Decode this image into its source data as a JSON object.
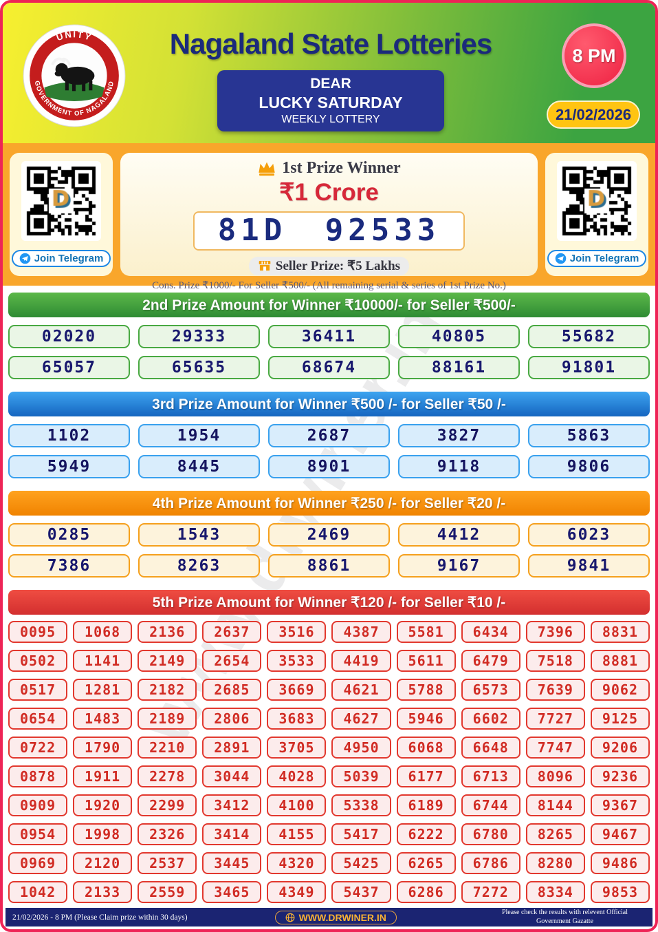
{
  "page": {
    "border_color": "#ee2456",
    "background": "#ffffff"
  },
  "header": {
    "title": "Nagaland State Lotteries",
    "logo": {
      "top_text": "UNITY",
      "bottom_text": "GOVERNMENT OF NAGALAND"
    },
    "draw_box": {
      "line1": "DEAR",
      "line2": "LUCKY SATURDAY",
      "line3": "WEEKLY LOTTERY"
    },
    "time_badge": "8 PM",
    "date_badge": "21/02/2026",
    "colors": {
      "title": "#1b2a7b",
      "draw_box_bg": "#283593",
      "time_badge_bg": "#ee2142",
      "date_badge_bg": "#ffc412"
    }
  },
  "first_prize": {
    "heading": "1st Prize Winner",
    "amount": "₹1 Crore",
    "winning_number": "81D 92533",
    "seller_prize": "Seller Prize: ₹5 Lakhs",
    "cons_note": "Cons. Prize ₹1000/- For Seller ₹500/- (All remaining serial & series of 1st Prize No.)",
    "telegram_button": "Join Telegram",
    "icons": {
      "crown": "crown-icon",
      "shop": "shop-icon",
      "telegram": "telegram-icon"
    },
    "colors": {
      "band_bg": "#f9a62b",
      "amount": "#d62839",
      "number": "#1a2b7e",
      "card_bg": "#fff8da"
    }
  },
  "sections": [
    {
      "title": "2nd Prize Amount for Winner ₹10000/- for Seller ₹500/-",
      "columns": 5,
      "numbers": [
        "02020",
        "29333",
        "36411",
        "40805",
        "55682",
        "65057",
        "65635",
        "68674",
        "88161",
        "91801"
      ],
      "colors": {
        "header_from": "#5cb849",
        "header_to": "#2e8b34",
        "box_bg": "#eaf6e6",
        "box_border": "#49a942",
        "number": "#18186e"
      }
    },
    {
      "title": "3rd Prize Amount for Winner ₹500 /- for Seller ₹50 /-",
      "columns": 5,
      "numbers": [
        "1102",
        "1954",
        "2687",
        "3827",
        "5863",
        "5949",
        "8445",
        "8901",
        "9118",
        "9806"
      ],
      "colors": {
        "header_from": "#3da4f0",
        "header_to": "#1565c0",
        "box_bg": "#d9edfc",
        "box_border": "#39a1ee",
        "number": "#151560"
      }
    },
    {
      "title": "4th Prize Amount for Winner ₹250 /- for Seller ₹20 /-",
      "columns": 5,
      "numbers": [
        "0285",
        "1543",
        "2469",
        "4412",
        "6023",
        "7386",
        "8263",
        "8861",
        "9167",
        "9841"
      ],
      "colors": {
        "header_from": "#ffa21f",
        "header_to": "#f08300",
        "box_bg": "#fdf3dc",
        "box_border": "#f5a01d",
        "number": "#18186e"
      }
    },
    {
      "title": "5th Prize Amount for Winner ₹120 /- for Seller ₹10 /-",
      "columns": 10,
      "numbers": [
        "0095",
        "1068",
        "2136",
        "2637",
        "3516",
        "4387",
        "5581",
        "6434",
        "7396",
        "8831",
        "0502",
        "1141",
        "2149",
        "2654",
        "3533",
        "4419",
        "5611",
        "6479",
        "7518",
        "8881",
        "0517",
        "1281",
        "2182",
        "2685",
        "3669",
        "4621",
        "5788",
        "6573",
        "7639",
        "9062",
        "0654",
        "1483",
        "2189",
        "2806",
        "3683",
        "4627",
        "5946",
        "6602",
        "7727",
        "9125",
        "0722",
        "1790",
        "2210",
        "2891",
        "3705",
        "4950",
        "6068",
        "6648",
        "7747",
        "9206",
        "0878",
        "1911",
        "2278",
        "3044",
        "4028",
        "5039",
        "6177",
        "6713",
        "8096",
        "9236",
        "0909",
        "1920",
        "2299",
        "3412",
        "4100",
        "5338",
        "6189",
        "6744",
        "8144",
        "9367",
        "0954",
        "1998",
        "2326",
        "3414",
        "4155",
        "5417",
        "6222",
        "6780",
        "8265",
        "9467",
        "0969",
        "2120",
        "2537",
        "3445",
        "4320",
        "5425",
        "6265",
        "6786",
        "8280",
        "9486",
        "1042",
        "2133",
        "2559",
        "3465",
        "4349",
        "5437",
        "6286",
        "7272",
        "8334",
        "9853"
      ],
      "colors": {
        "header_from": "#ef4d42",
        "header_to": "#d32f2f",
        "box_bg": "#fcecec",
        "box_border": "#e2382e",
        "number": "#d12c24"
      }
    }
  ],
  "watermark": "www.drwiner.in",
  "footer": {
    "left": "21/02/2026 - 8 PM (Please Claim prize within 30 days)",
    "site": "WWW.DRWINER.IN",
    "right": "Please check the results with relevent Official Government Gazatte",
    "colors": {
      "bg": "#1b2472",
      "site": "#f9b233"
    }
  }
}
